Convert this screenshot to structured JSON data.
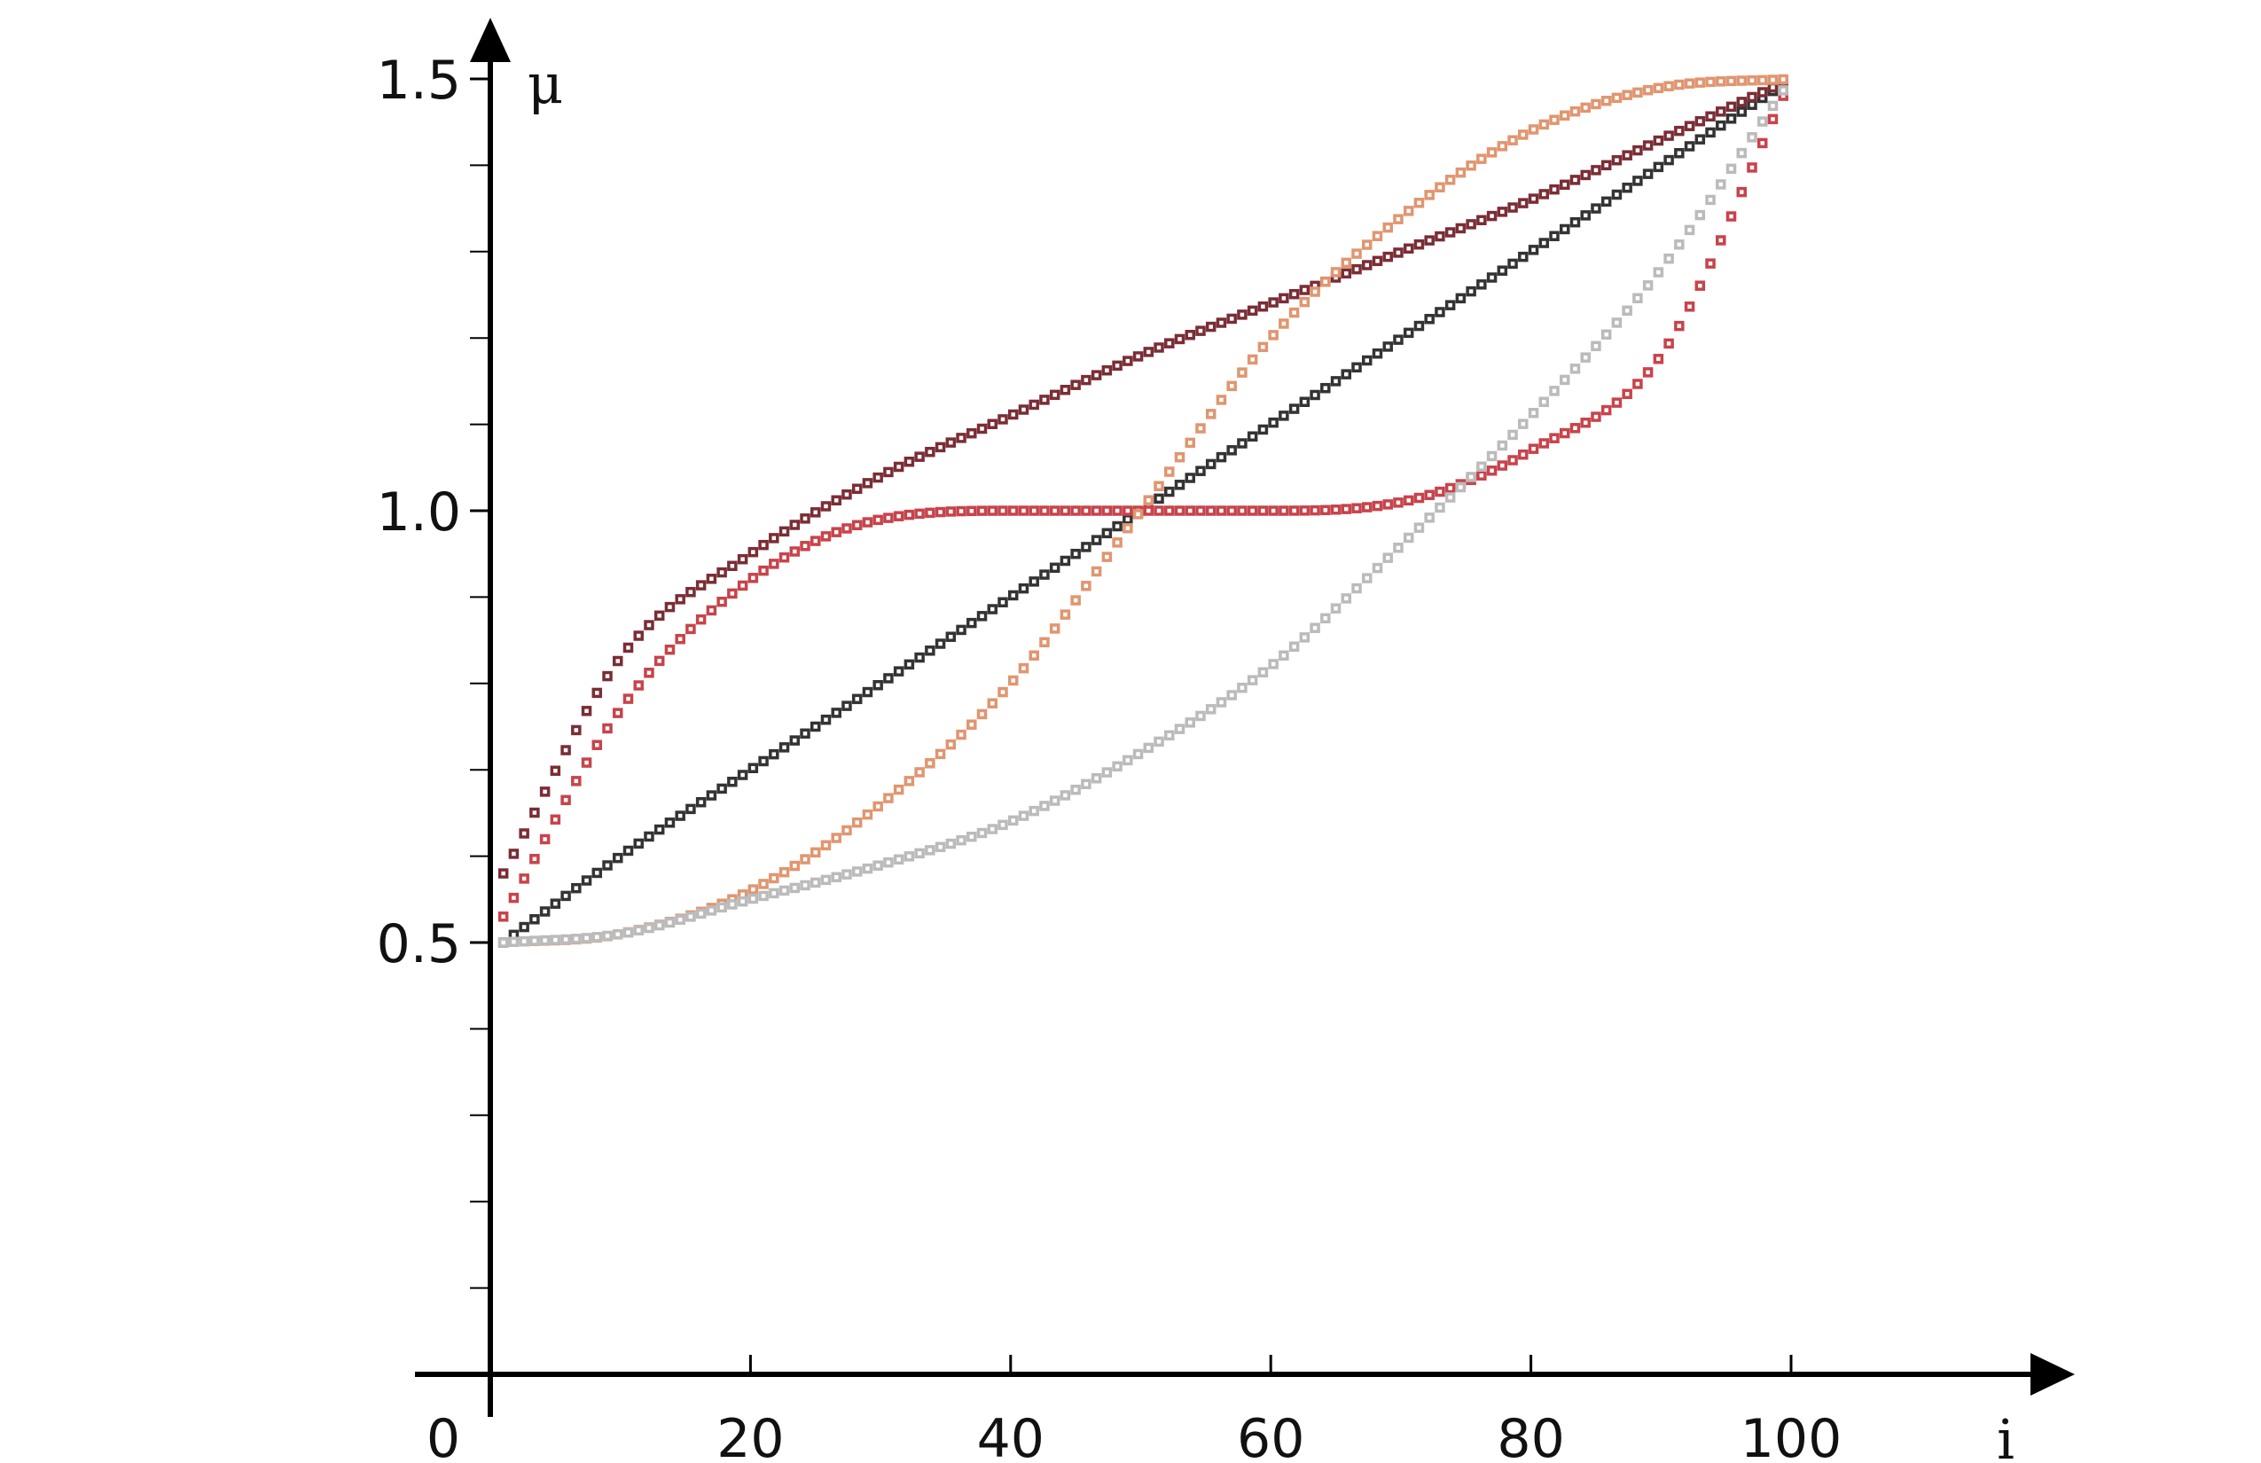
{
  "chart_data": {
    "type": "scatter",
    "xlabel": "i",
    "ylabel": "μ",
    "xlim": [
      0,
      120
    ],
    "ylim": [
      0,
      1.5
    ],
    "x_ticks": [
      0,
      20,
      40,
      60,
      80,
      100
    ],
    "x_tick_labels": [
      "0",
      "20",
      "40",
      "60",
      "80",
      "100"
    ],
    "y_ticks": [
      0.5,
      1.0,
      1.5
    ],
    "y_tick_labels": [
      "0.5",
      "1.0",
      "1.5"
    ],
    "y_minor_ticks": [
      0.1,
      0.2,
      0.3,
      0.4,
      0.6,
      0.7,
      0.8,
      0.9,
      1.1,
      1.2,
      1.3,
      1.4
    ],
    "grid": false,
    "legend": "none",
    "marker": "open-square",
    "x": [
      1,
      10,
      20,
      30,
      40,
      50,
      60,
      70,
      80,
      90,
      100
    ],
    "series": [
      {
        "color": "#333333",
        "values": [
          0.5,
          0.6,
          0.7,
          0.8,
          0.9,
          1.0,
          1.1,
          1.2,
          1.3,
          1.4,
          1.5
        ]
      },
      {
        "color": "#7a2d35",
        "values": [
          0.58,
          0.83,
          0.95,
          1.04,
          1.11,
          1.18,
          1.24,
          1.3,
          1.36,
          1.43,
          1.5
        ]
      },
      {
        "color": "#c8434b",
        "values": [
          0.53,
          0.77,
          0.92,
          0.99,
          1.0,
          1.0,
          1.0,
          1.01,
          1.07,
          1.18,
          1.5
        ]
      },
      {
        "color": "#e09670",
        "values": [
          0.5,
          0.51,
          0.56,
          0.66,
          0.8,
          1.0,
          1.2,
          1.34,
          1.44,
          1.49,
          1.5
        ]
      },
      {
        "color": "#bbbbbb",
        "values": [
          0.5,
          0.51,
          0.55,
          0.59,
          0.64,
          0.72,
          0.82,
          0.96,
          1.11,
          1.28,
          1.5
        ]
      }
    ]
  }
}
